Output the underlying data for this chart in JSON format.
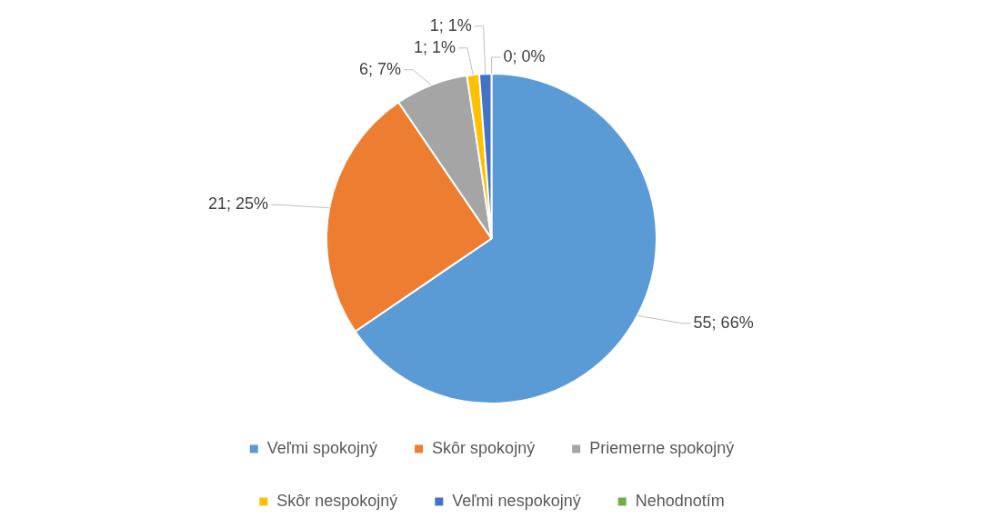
{
  "chart_data": {
    "type": "pie",
    "categories": [
      "Veľmi spokojný",
      "Skôr spokojný",
      "Priemerne spokojný",
      "Skôr nespokojný",
      "Veľmi nespokojný",
      "Nehodnotím"
    ],
    "values": [
      55,
      21,
      6,
      1,
      1,
      0
    ],
    "colors": [
      "#5b9bd5",
      "#ed7d31",
      "#a5a5a5",
      "#ffc000",
      "#4472c4",
      "#70ad47"
    ],
    "value_labels": [
      "55; 66%",
      "21; 25%",
      "6; 7%",
      "1; 1%",
      "1; 1%",
      "0; 0%"
    ],
    "legend": "bottom"
  }
}
